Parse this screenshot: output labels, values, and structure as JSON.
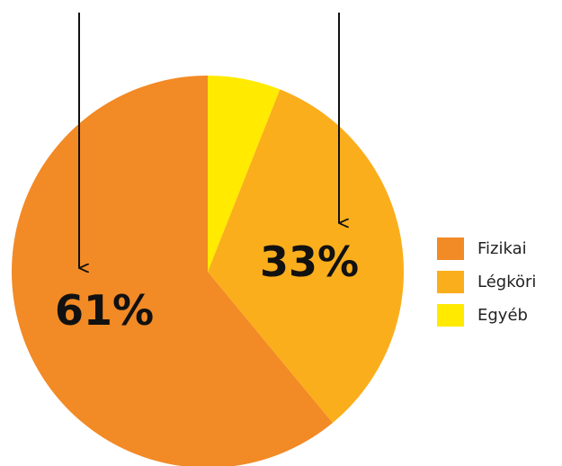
{
  "chart_data": {
    "type": "pie",
    "title": "",
    "slices": [
      {
        "name": "Fizikai",
        "value": 61,
        "label": "61%",
        "color": "#F28A25"
      },
      {
        "name": "Légköri",
        "value": 33,
        "label": "33%",
        "color": "#FBAE1C"
      },
      {
        "name": "Egyéb",
        "value": 6,
        "label": "",
        "color": "#FFEA00"
      }
    ],
    "legend_position": "right",
    "annotations": [
      "arrow pointing to 61% slice",
      "arrow pointing to 33% slice"
    ]
  }
}
